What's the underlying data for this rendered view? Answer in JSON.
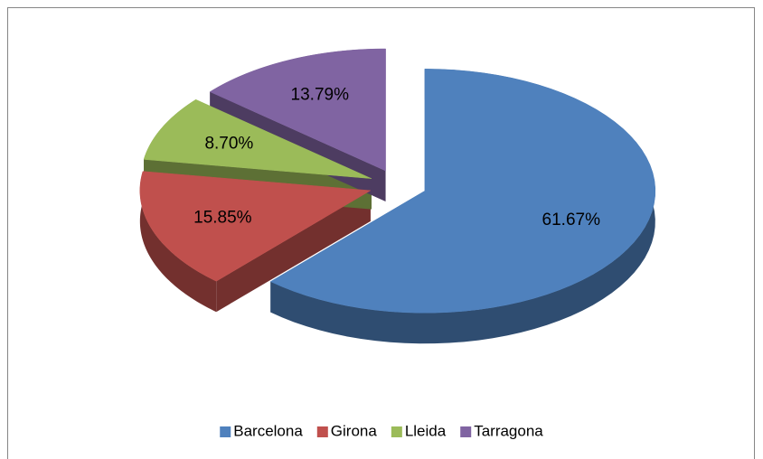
{
  "chart_data": {
    "type": "pie",
    "categories": [
      "Barcelona",
      "Girona",
      "Lleida",
      "Tarragona"
    ],
    "values": [
      61.67,
      15.85,
      8.7,
      13.79
    ],
    "value_labels": [
      "61.67%",
      "15.85%",
      "8.70%",
      "13.79%"
    ],
    "colors": [
      "#4f81bd",
      "#c0504d",
      "#9bbb59",
      "#8064a2"
    ],
    "legend": "bottom",
    "exploded": true,
    "3d": true
  }
}
